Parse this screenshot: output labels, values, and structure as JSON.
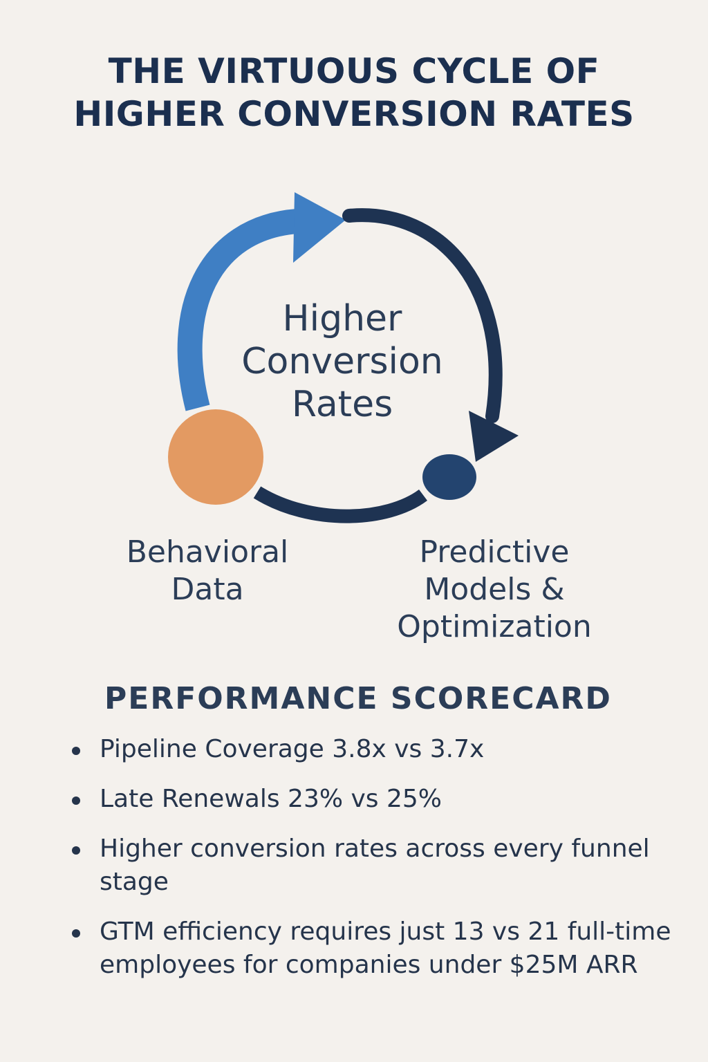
{
  "title": {
    "line1": "THE VIRTUOUS CYCLE OF",
    "line2": "HIGHER CONVERSION RATES"
  },
  "cycle": {
    "center": {
      "line1": "Higher",
      "line2": "Conversion",
      "line3": "Rates"
    },
    "nodes": [
      {
        "id": "behavioral",
        "line1": "Behavioral",
        "line2": "Data",
        "color": "#e39a62"
      },
      {
        "id": "predictive",
        "line1": "Predictive",
        "line2": "Models &",
        "line3": "Optimization",
        "color": "#23446f"
      }
    ],
    "colors": {
      "light_arc": "#3f7fc4",
      "dark_arc": "#1e3352"
    }
  },
  "scorecard": {
    "title": "PERFORMANCE SCORECARD",
    "items": [
      "Pipeline Coverage  3.8x vs 3.7x",
      "Late Renewals  23% vs 25%",
      "Higher conversion rates across every funnel stage",
      "GTM efficiency requires just 13 vs 21 full-time employees for companies under $25M ARR"
    ]
  }
}
